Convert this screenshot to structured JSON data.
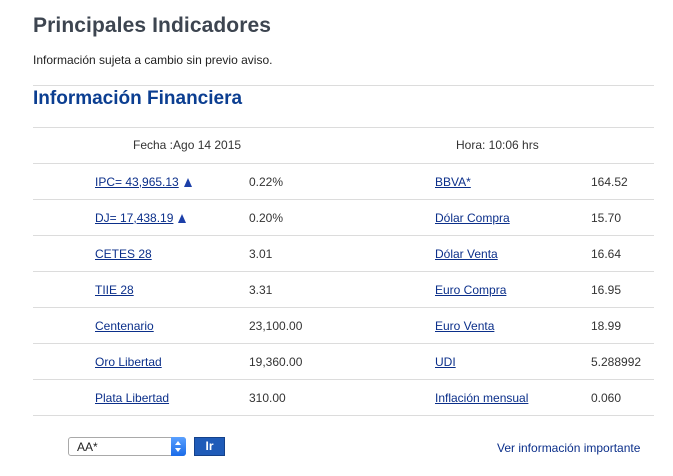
{
  "header": {
    "title": "Principales Indicadores",
    "subtitle": "Información sujeta a cambio sin previo aviso."
  },
  "section": {
    "title": "Información Financiera"
  },
  "date_row": {
    "fecha": "Fecha :Ago 14 2015",
    "hora": "Hora: 10:06 hrs"
  },
  "rows": [
    {
      "left_label": "IPC= 43,965.13",
      "left_arrow": "arrow-up-icon",
      "left_value": "0.22%",
      "right_label": "BBVA*",
      "right_value": "164.52"
    },
    {
      "left_label": "DJ= 17,438.19",
      "left_arrow": "arrow-up-icon",
      "left_value": "0.20%",
      "right_label": "Dólar Compra",
      "right_value": "15.70"
    },
    {
      "left_label": "CETES 28",
      "left_value": "3.01",
      "right_label": "Dólar Venta",
      "right_value": "16.64"
    },
    {
      "left_label": "TIIE 28",
      "left_value": "3.31",
      "right_label": "Euro Compra",
      "right_value": "16.95"
    },
    {
      "left_label": "Centenario",
      "left_value": "23,100.00",
      "right_label": "Euro Venta",
      "right_value": "18.99"
    },
    {
      "left_label": "Oro Libertad",
      "left_value": "19,360.00",
      "right_label": "UDI",
      "right_value": "5.288992"
    },
    {
      "left_label": "Plata Libertad",
      "left_value": "310.00",
      "right_label": "Inflación mensual",
      "right_value": "0.060"
    }
  ],
  "footer": {
    "select_value": "AA*",
    "go_button": "Ir",
    "info_link": "Ver información importante"
  },
  "colors": {
    "link": "#0b2f8a",
    "section_title": "#0b3e91",
    "button": "#1f5bb8"
  }
}
